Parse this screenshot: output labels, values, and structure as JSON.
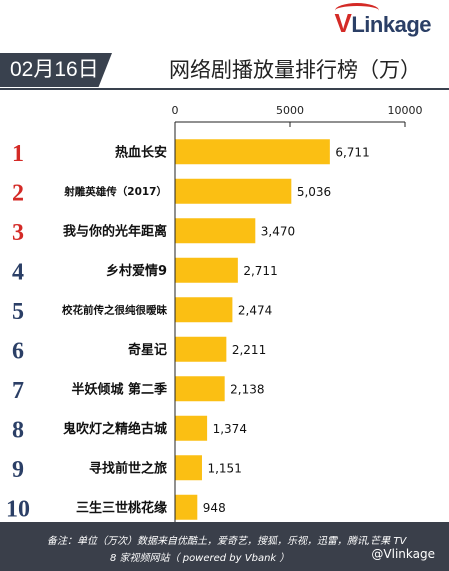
{
  "brand": {
    "logo_v": "V",
    "logo_rest": "Linkage"
  },
  "date_badge": "02月16日",
  "title": "网络剧播放量排行榜（万）",
  "footer": {
    "line1": "备注：单位（万次）数据来自优酷土，爱奇艺，搜狐，乐视，迅雷，腾讯,芒果 TV",
    "line2": "8 家视频网站（ powered by Vbank ）",
    "handle": "@Vlinkage"
  },
  "colors": {
    "bar": "#fbbf13",
    "rank_red": "#d42a26",
    "rank_navy": "#2b3f66",
    "badge": "#39414e"
  },
  "chart_data": {
    "type": "bar",
    "orientation": "horizontal",
    "title": "网络剧播放量排行榜（万）",
    "xlim": [
      0,
      10000
    ],
    "xticks": [
      "0",
      "5000",
      "10000"
    ],
    "grid": false,
    "ranks": [
      "1",
      "2",
      "3",
      "4",
      "5",
      "6",
      "7",
      "8",
      "9",
      "10"
    ],
    "categories": [
      "热血长安",
      "射雕英雄传（2017）",
      "我与你的光年距离",
      "乡村爱情9",
      "校花前传之很纯很暧昧",
      "奇星记",
      "半妖倾城 第二季",
      "鬼吹灯之精绝古城",
      "寻找前世之旅",
      "三生三世桃花缘"
    ],
    "values": [
      6711,
      5036,
      3470,
      2711,
      2474,
      2211,
      2138,
      1374,
      1151,
      948
    ],
    "value_labels": [
      "6,711",
      "5,036",
      "3,470",
      "2,711",
      "2,474",
      "2,211",
      "2,138",
      "1,374",
      "1,151",
      "948"
    ]
  }
}
